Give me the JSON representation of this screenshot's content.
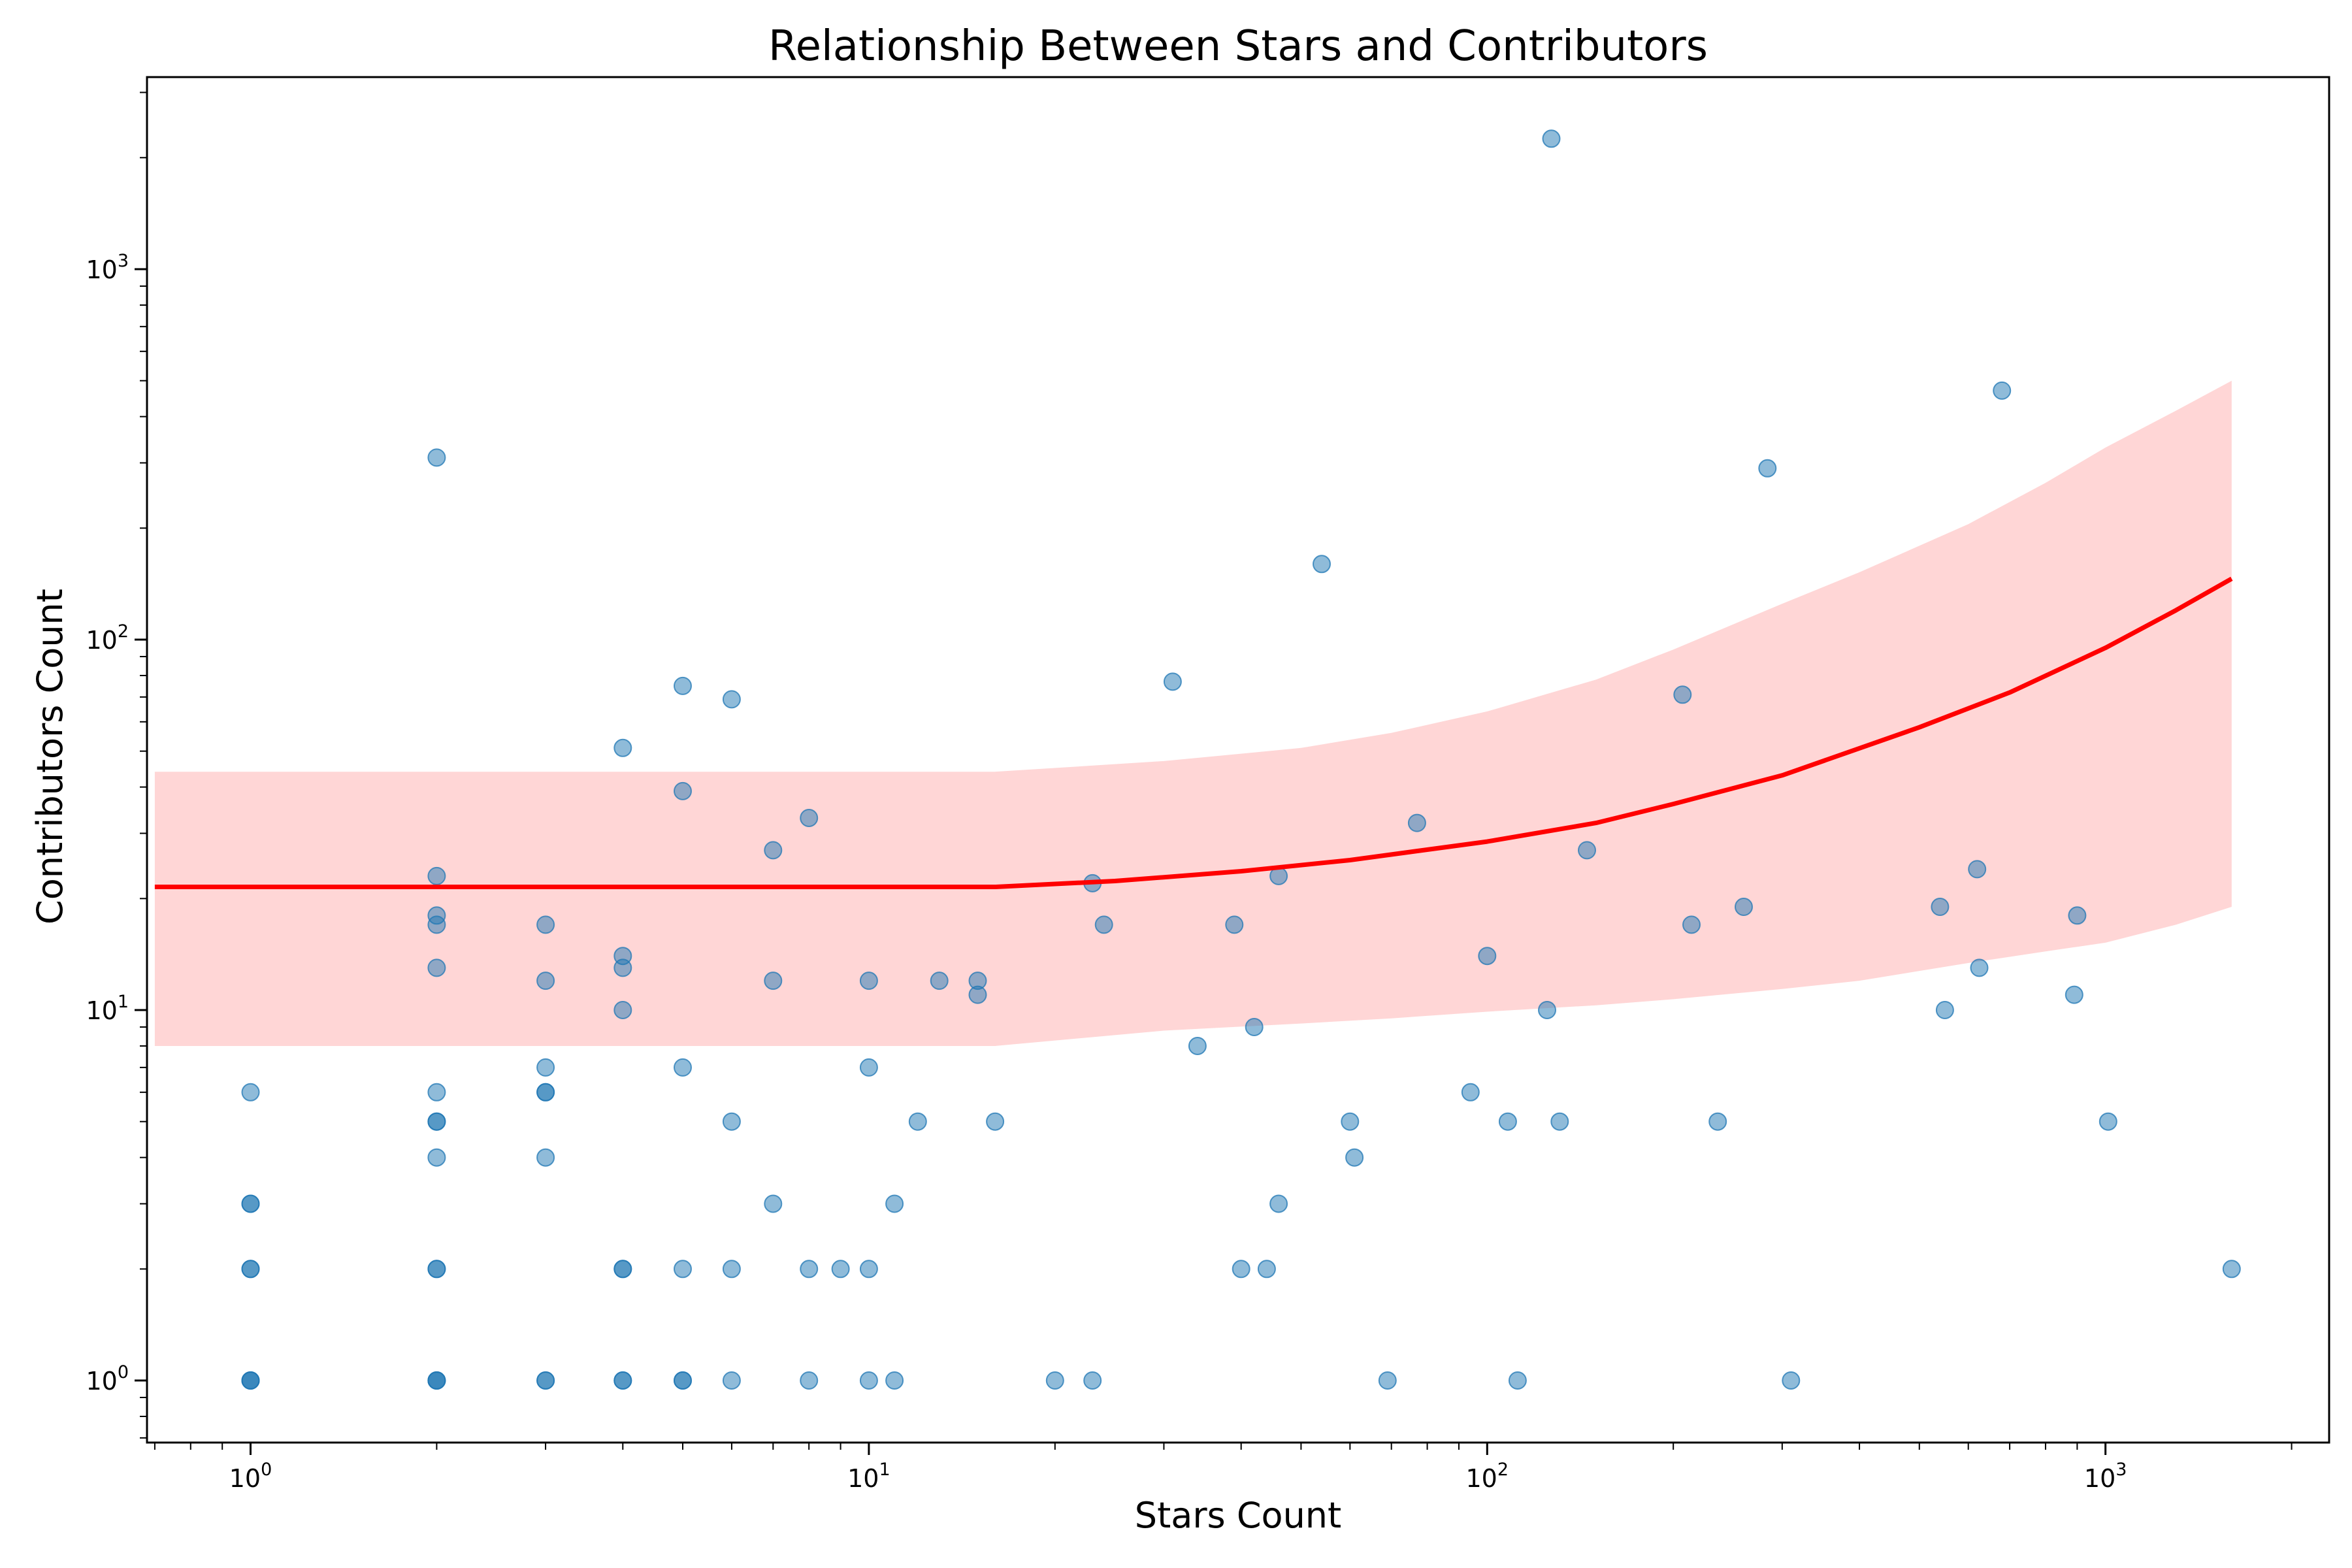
{
  "chart_data": {
    "type": "scatter",
    "title": "Relationship Between Stars and Contributors",
    "xlabel": "Stars Count",
    "ylabel": "Contributors Count",
    "xscale": "log",
    "yscale": "log",
    "xlim": [
      0.68,
      2300
    ],
    "ylim": [
      0.68,
      3300
    ],
    "grid": false,
    "legend": "none",
    "x_ticks": [
      {
        "base": "10",
        "exp": "0",
        "value": 1
      },
      {
        "base": "10",
        "exp": "1",
        "value": 10
      },
      {
        "base": "10",
        "exp": "2",
        "value": 100
      },
      {
        "base": "10",
        "exp": "3",
        "value": 1000
      }
    ],
    "y_ticks": [
      {
        "base": "10",
        "exp": "0",
        "value": 1
      },
      {
        "base": "10",
        "exp": "1",
        "value": 10
      },
      {
        "base": "10",
        "exp": "2",
        "value": 100
      },
      {
        "base": "10",
        "exp": "3",
        "value": 1000
      }
    ],
    "colors": {
      "points": "#1f77b4",
      "fit_line": "#ff0000",
      "band": "#ffd6d6"
    },
    "points": [
      [
        1,
        1
      ],
      [
        1,
        1
      ],
      [
        1,
        1
      ],
      [
        1,
        2
      ],
      [
        1,
        2
      ],
      [
        1,
        3
      ],
      [
        1,
        3
      ],
      [
        1,
        6
      ],
      [
        2,
        1
      ],
      [
        2,
        1
      ],
      [
        2,
        1
      ],
      [
        2,
        2
      ],
      [
        2,
        2
      ],
      [
        2,
        4
      ],
      [
        2,
        5
      ],
      [
        2,
        5
      ],
      [
        2,
        6
      ],
      [
        2,
        13
      ],
      [
        2,
        17
      ],
      [
        2,
        18
      ],
      [
        2,
        23
      ],
      [
        2,
        310
      ],
      [
        3,
        1
      ],
      [
        3,
        1
      ],
      [
        3,
        4
      ],
      [
        3,
        6
      ],
      [
        3,
        6
      ],
      [
        3,
        7
      ],
      [
        3,
        12
      ],
      [
        3,
        17
      ],
      [
        4,
        1
      ],
      [
        4,
        1
      ],
      [
        4,
        2
      ],
      [
        4,
        2
      ],
      [
        4,
        10
      ],
      [
        4,
        13
      ],
      [
        4,
        14
      ],
      [
        4,
        51
      ],
      [
        5,
        1
      ],
      [
        5,
        1
      ],
      [
        5,
        2
      ],
      [
        5,
        7
      ],
      [
        5,
        39
      ],
      [
        5,
        75
      ],
      [
        6,
        1
      ],
      [
        6,
        2
      ],
      [
        6,
        5
      ],
      [
        6,
        69
      ],
      [
        7,
        3
      ],
      [
        7,
        12
      ],
      [
        7,
        27
      ],
      [
        8,
        1
      ],
      [
        8,
        2
      ],
      [
        8,
        33
      ],
      [
        9,
        2
      ],
      [
        10,
        1
      ],
      [
        10,
        2
      ],
      [
        10,
        7
      ],
      [
        10,
        12
      ],
      [
        11,
        1
      ],
      [
        11,
        3
      ],
      [
        12,
        5
      ],
      [
        13,
        12
      ],
      [
        15,
        11
      ],
      [
        15,
        12
      ],
      [
        16,
        5
      ],
      [
        20,
        1
      ],
      [
        23,
        1
      ],
      [
        23,
        22
      ],
      [
        24,
        17
      ],
      [
        31,
        77
      ],
      [
        34,
        8
      ],
      [
        39,
        17
      ],
      [
        40,
        2
      ],
      [
        42,
        9
      ],
      [
        44,
        2
      ],
      [
        46,
        3
      ],
      [
        46,
        23
      ],
      [
        54,
        160
      ],
      [
        60,
        5
      ],
      [
        61,
        4
      ],
      [
        69,
        1
      ],
      [
        77,
        32
      ],
      [
        94,
        6
      ],
      [
        100,
        14
      ],
      [
        108,
        5
      ],
      [
        112,
        1
      ],
      [
        125,
        10
      ],
      [
        127,
        2250
      ],
      [
        131,
        5
      ],
      [
        145,
        27
      ],
      [
        207,
        71
      ],
      [
        214,
        17
      ],
      [
        236,
        5
      ],
      [
        260,
        19
      ],
      [
        284,
        290
      ],
      [
        310,
        1
      ],
      [
        540,
        19
      ],
      [
        550,
        10
      ],
      [
        620,
        24
      ],
      [
        625,
        13
      ],
      [
        680,
        470
      ],
      [
        890,
        11
      ],
      [
        900,
        18
      ],
      [
        1010,
        5
      ],
      [
        1600,
        2
      ]
    ],
    "fit_line": [
      [
        0.7,
        21.5
      ],
      [
        16,
        21.5
      ],
      [
        25,
        22.3
      ],
      [
        40,
        23.7
      ],
      [
        60,
        25.4
      ],
      [
        100,
        28.5
      ],
      [
        150,
        32
      ],
      [
        200,
        36
      ],
      [
        300,
        43
      ],
      [
        500,
        58
      ],
      [
        700,
        72
      ],
      [
        1000,
        95
      ],
      [
        1300,
        120
      ],
      [
        1600,
        146
      ]
    ],
    "band_upper": [
      [
        0.7,
        44
      ],
      [
        16,
        44
      ],
      [
        30,
        47
      ],
      [
        50,
        51
      ],
      [
        70,
        56
      ],
      [
        100,
        64
      ],
      [
        150,
        78
      ],
      [
        200,
        94
      ],
      [
        300,
        125
      ],
      [
        400,
        152
      ],
      [
        600,
        205
      ],
      [
        800,
        265
      ],
      [
        1000,
        330
      ],
      [
        1300,
        415
      ],
      [
        1600,
        500
      ]
    ],
    "band_lower": [
      [
        0.7,
        8
      ],
      [
        16,
        8
      ],
      [
        30,
        8.8
      ],
      [
        50,
        9.2
      ],
      [
        70,
        9.5
      ],
      [
        100,
        9.9
      ],
      [
        150,
        10.3
      ],
      [
        200,
        10.7
      ],
      [
        300,
        11.4
      ],
      [
        400,
        12
      ],
      [
        600,
        13.4
      ],
      [
        800,
        14.4
      ],
      [
        1000,
        15.2
      ],
      [
        1300,
        17
      ],
      [
        1600,
        19
      ]
    ]
  }
}
